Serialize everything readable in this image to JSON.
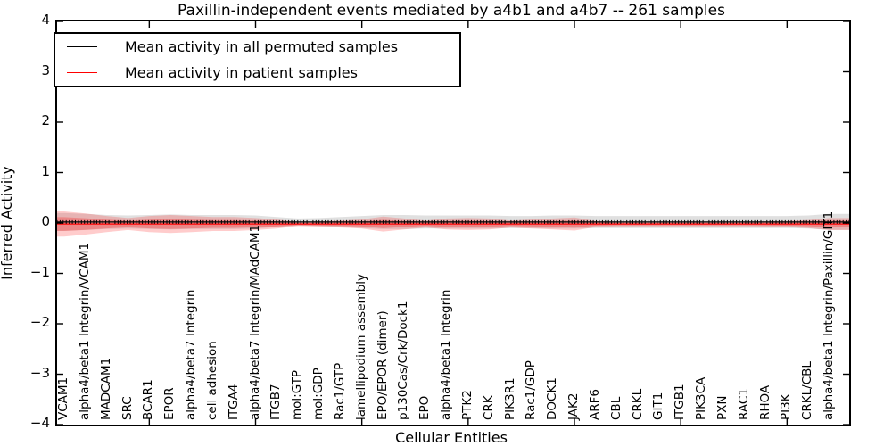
{
  "figure": {
    "title": "Paxillin-independent events mediated by a4b1 and a4b7 -- 261 samples",
    "xlabel": "Cellular Entities",
    "ylabel": "Inferred Activity"
  },
  "legend": {
    "entries": [
      {
        "label": "Mean activity in all permuted samples",
        "color": "#000000"
      },
      {
        "label": "Mean activity in patient samples",
        "color": "#ff0000"
      }
    ]
  },
  "colors": {
    "permuted_line": "#000000",
    "patient_line": "#ff0000",
    "permuted_band": "rgba(0,0,0,0.12)",
    "patient_band_outer": "rgba(255,0,0,0.20)",
    "patient_band_inner": "rgba(255,0,0,0.25)",
    "axis": "#000000"
  },
  "chart_data": {
    "type": "line",
    "title": "Paxillin-independent events mediated by a4b1 and a4b7 -- 261 samples",
    "xlabel": "Cellular Entities",
    "ylabel": "Inferred Activity",
    "ylim": [
      -4,
      4
    ],
    "yticks": [
      -4,
      -3,
      -2,
      -1,
      0,
      1,
      2,
      3,
      4
    ],
    "grid": false,
    "legend_position": "upper left",
    "xtick_entity_indices": [
      4,
      9,
      14,
      19,
      24,
      29,
      34
    ],
    "sample_marker_count": 261,
    "categories": [
      "VCAM1",
      "alpha4/beta1 Integrin/VCAM1",
      "MADCAM1",
      "SRC",
      "BCAR1",
      "EPOR",
      "alpha4/beta7 Integrin",
      "cell adhesion",
      "ITGA4",
      "alpha4/beta7 Integrin/MAdCAM1",
      "ITGB7",
      "mol:GTP",
      "mol:GDP",
      "Rac1/GTP",
      "lamellipodium assembly",
      "EPO/EPOR (dimer)",
      "p130Cas/Crk/Dock1",
      "EPO",
      "alpha4/beta1 Integrin",
      "PTK2",
      "CRK",
      "PIK3R1",
      "Rac1/GDP",
      "DOCK1",
      "JAK2",
      "ARF6",
      "CBL",
      "CRKL",
      "GIT1",
      "ITGB1",
      "PIK3CA",
      "PXN",
      "RAC1",
      "RHOA",
      "PI3K",
      "CRKL/CBL",
      "alpha4/beta1 Integrin/Paxillin/GIT1"
    ],
    "series": [
      {
        "name": "Mean activity in all permuted samples",
        "color": "#000000",
        "values": [
          0.02,
          0.02,
          0.02,
          0.02,
          0.02,
          0.02,
          0.02,
          0.02,
          0.02,
          0.02,
          0.02,
          0.02,
          0.02,
          0.02,
          0.02,
          0.02,
          0.02,
          0.02,
          0.02,
          0.02,
          0.02,
          0.02,
          0.02,
          0.02,
          0.02,
          0.02,
          0.02,
          0.02,
          0.02,
          0.02,
          0.02,
          0.02,
          0.02,
          0.02,
          0.02,
          0.02,
          0.02
        ],
        "std": [
          0.18,
          0.16,
          0.14,
          0.13,
          0.14,
          0.15,
          0.14,
          0.14,
          0.14,
          0.13,
          0.1,
          0.07,
          0.08,
          0.1,
          0.12,
          0.14,
          0.14,
          0.13,
          0.13,
          0.13,
          0.13,
          0.12,
          0.12,
          0.13,
          0.13,
          0.12,
          0.12,
          0.12,
          0.12,
          0.12,
          0.12,
          0.12,
          0.12,
          0.12,
          0.12,
          0.13,
          0.16
        ]
      },
      {
        "name": "Mean activity in patient samples",
        "color": "#ff0000",
        "values": [
          -0.02,
          -0.02,
          -0.02,
          -0.02,
          -0.02,
          -0.02,
          -0.02,
          -0.02,
          -0.02,
          -0.02,
          -0.02,
          -0.02,
          -0.02,
          -0.02,
          -0.02,
          -0.02,
          -0.02,
          -0.02,
          -0.02,
          -0.02,
          -0.02,
          -0.02,
          -0.02,
          -0.02,
          -0.02,
          -0.02,
          -0.02,
          -0.02,
          -0.02,
          -0.02,
          -0.02,
          -0.02,
          -0.02,
          -0.02,
          -0.02,
          -0.02,
          -0.02
        ],
        "std": [
          0.25,
          0.21,
          0.16,
          0.12,
          0.16,
          0.18,
          0.16,
          0.14,
          0.14,
          0.12,
          0.09,
          0.04,
          0.05,
          0.07,
          0.09,
          0.15,
          0.11,
          0.07,
          0.11,
          0.12,
          0.11,
          0.07,
          0.09,
          0.11,
          0.13,
          0.06,
          0.045,
          0.045,
          0.045,
          0.045,
          0.045,
          0.045,
          0.045,
          0.05,
          0.06,
          0.08,
          0.12
        ]
      }
    ]
  }
}
